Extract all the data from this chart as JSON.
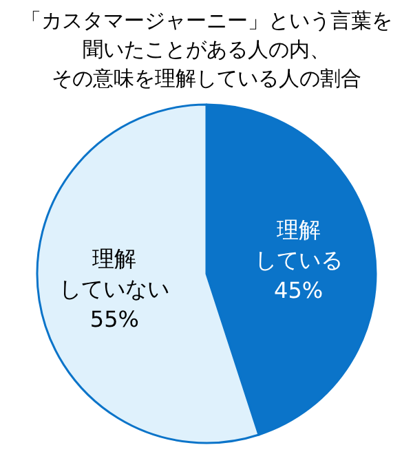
{
  "chart_data": {
    "type": "pie",
    "title": "「カスタマージャーニー」という言葉を聞いたことがある人の内、その意味を理解している人の割合",
    "categories": [
      "理解している",
      "理解していない"
    ],
    "values": [
      45,
      55
    ],
    "value_labels": [
      "45%",
      "55%"
    ],
    "colors": [
      "#0b74c9",
      "#dff1fc"
    ]
  }
}
